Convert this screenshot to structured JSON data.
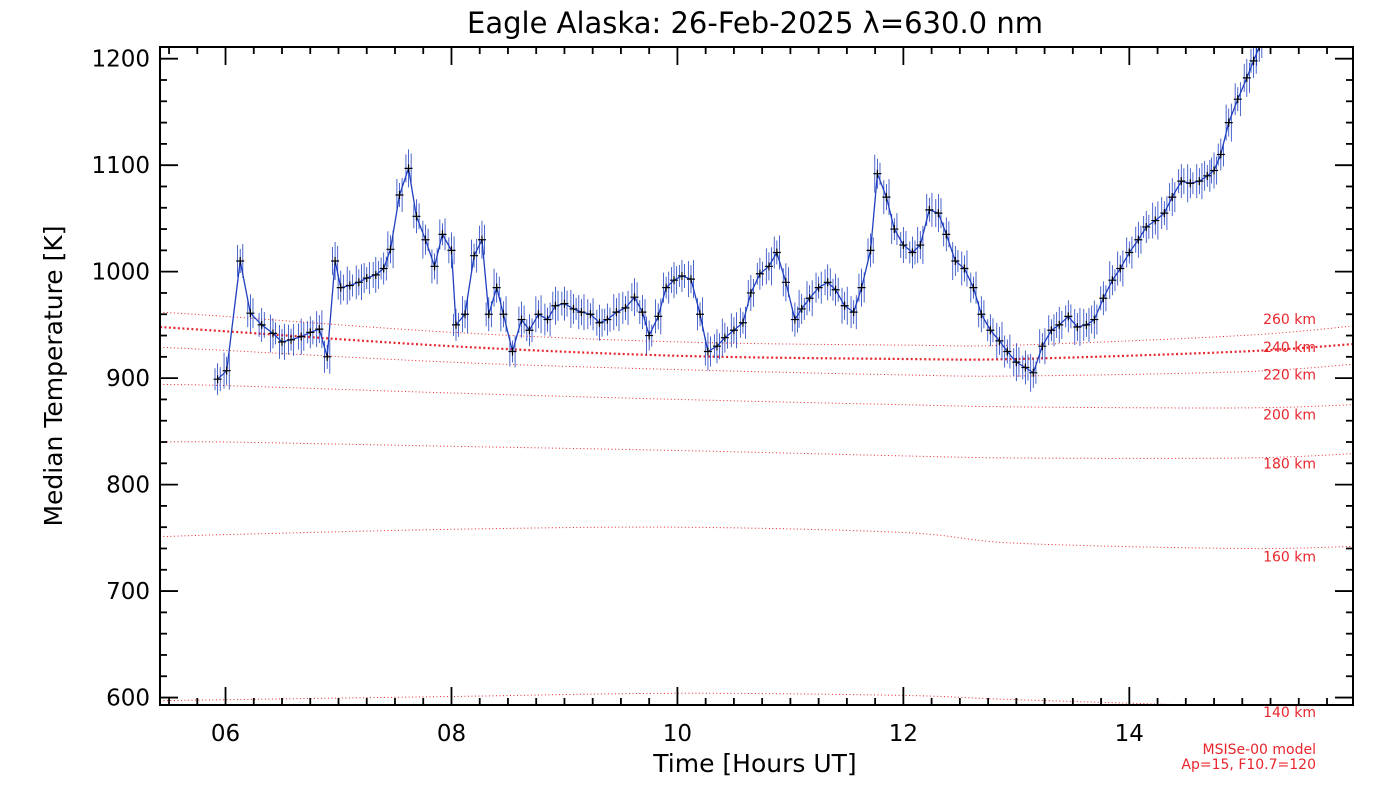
{
  "chart_data": {
    "type": "line",
    "title": "Eagle Alaska: 26-Feb-2025 λ=630.0 nm",
    "xlabel": "Time [Hours UT]",
    "ylabel": "Median Temperature [K]",
    "xlim": [
      5.42,
      15.98
    ],
    "ylim": [
      593,
      1211
    ],
    "x_ticks": [
      6,
      8,
      10,
      12,
      14
    ],
    "x_tick_labels": [
      "06",
      "08",
      "10",
      "12",
      "14"
    ],
    "y_ticks": [
      600,
      700,
      800,
      900,
      1000,
      1100,
      1200
    ],
    "y_tick_labels": [
      "600",
      "700",
      "800",
      "900",
      "1000",
      "1100",
      "1200"
    ],
    "grid": false,
    "colors": {
      "measurement_line": "#1f3fbf",
      "errorbar": "#1f3fbf",
      "marker": "#000000",
      "model": "#e8262d",
      "annotation": "#e8262d"
    },
    "annotations": [
      "MSISe-00 model",
      "Ap=15, F10.7=120"
    ],
    "series": [
      {
        "kind": "measurement",
        "points": [
          [
            5.93,
            899
          ],
          [
            6.01,
            907
          ],
          [
            6.13,
            1010
          ],
          [
            6.22,
            961
          ],
          [
            6.32,
            950
          ],
          [
            6.42,
            942
          ],
          [
            6.5,
            934
          ],
          [
            6.58,
            936
          ],
          [
            6.67,
            939
          ],
          [
            6.75,
            943
          ],
          [
            6.83,
            946
          ],
          [
            6.9,
            920
          ],
          [
            6.97,
            1010
          ],
          [
            7.02,
            985
          ],
          [
            7.1,
            987
          ],
          [
            7.18,
            990
          ],
          [
            7.25,
            994
          ],
          [
            7.33,
            997
          ],
          [
            7.4,
            1003
          ],
          [
            7.46,
            1021
          ],
          [
            7.54,
            1072
          ],
          [
            7.62,
            1097
          ],
          [
            7.69,
            1052
          ],
          [
            7.77,
            1030
          ],
          [
            7.85,
            1005
          ],
          [
            7.92,
            1035
          ],
          [
            8.0,
            1020
          ],
          [
            8.04,
            950
          ],
          [
            8.12,
            960
          ],
          [
            8.2,
            1015
          ],
          [
            8.27,
            1030
          ],
          [
            8.33,
            960
          ],
          [
            8.4,
            985
          ],
          [
            8.46,
            960
          ],
          [
            8.54,
            925
          ],
          [
            8.62,
            955
          ],
          [
            8.69,
            945
          ],
          [
            8.77,
            960
          ],
          [
            8.85,
            955
          ],
          [
            8.92,
            968
          ],
          [
            9.0,
            970
          ],
          [
            9.08,
            965
          ],
          [
            9.15,
            962
          ],
          [
            9.23,
            960
          ],
          [
            9.31,
            952
          ],
          [
            9.38,
            955
          ],
          [
            9.46,
            962
          ],
          [
            9.54,
            966
          ],
          [
            9.62,
            976
          ],
          [
            9.69,
            962
          ],
          [
            9.75,
            940
          ],
          [
            9.83,
            958
          ],
          [
            9.9,
            985
          ],
          [
            9.97,
            992
          ],
          [
            10.04,
            996
          ],
          [
            10.12,
            993
          ],
          [
            10.2,
            960
          ],
          [
            10.27,
            925
          ],
          [
            10.35,
            930
          ],
          [
            10.42,
            938
          ],
          [
            10.5,
            945
          ],
          [
            10.58,
            952
          ],
          [
            10.65,
            980
          ],
          [
            10.73,
            998
          ],
          [
            10.81,
            1005
          ],
          [
            10.88,
            1018
          ],
          [
            10.96,
            990
          ],
          [
            11.04,
            955
          ],
          [
            11.1,
            965
          ],
          [
            11.17,
            975
          ],
          [
            11.25,
            985
          ],
          [
            11.33,
            990
          ],
          [
            11.4,
            983
          ],
          [
            11.48,
            968
          ],
          [
            11.56,
            962
          ],
          [
            11.63,
            985
          ],
          [
            11.71,
            1020
          ],
          [
            11.77,
            1092
          ],
          [
            11.85,
            1070
          ],
          [
            11.92,
            1040
          ],
          [
            12.0,
            1025
          ],
          [
            12.08,
            1018
          ],
          [
            12.15,
            1025
          ],
          [
            12.23,
            1058
          ],
          [
            12.31,
            1055
          ],
          [
            12.38,
            1035
          ],
          [
            12.46,
            1010
          ],
          [
            12.54,
            1003
          ],
          [
            12.62,
            985
          ],
          [
            12.69,
            960
          ],
          [
            12.77,
            945
          ],
          [
            12.85,
            935
          ],
          [
            12.92,
            925
          ],
          [
            13.0,
            915
          ],
          [
            13.08,
            910
          ],
          [
            13.15,
            905
          ],
          [
            13.23,
            930
          ],
          [
            13.31,
            945
          ],
          [
            13.38,
            950
          ],
          [
            13.46,
            958
          ],
          [
            13.54,
            948
          ],
          [
            13.62,
            950
          ],
          [
            13.69,
            955
          ],
          [
            13.77,
            975
          ],
          [
            13.85,
            992
          ],
          [
            13.92,
            1003
          ],
          [
            14.0,
            1018
          ],
          [
            14.08,
            1030
          ],
          [
            14.15,
            1042
          ],
          [
            14.23,
            1048
          ],
          [
            14.31,
            1055
          ],
          [
            14.38,
            1070
          ],
          [
            14.46,
            1085
          ],
          [
            14.54,
            1083
          ],
          [
            14.62,
            1085
          ],
          [
            14.69,
            1090
          ],
          [
            14.75,
            1095
          ],
          [
            14.81,
            1110
          ],
          [
            14.88,
            1140
          ],
          [
            14.96,
            1162
          ],
          [
            15.04,
            1182
          ],
          [
            15.1,
            1198
          ],
          [
            15.15,
            1211
          ]
        ]
      },
      {
        "kind": "model",
        "name": "140 km",
        "x": [
          5.42,
          6.0,
          8.0,
          10.0,
          12.0,
          13.0,
          15.0,
          15.98
        ],
        "y": [
          597,
          598,
          601,
          604,
          602,
          598,
          592,
          593
        ]
      },
      {
        "kind": "model",
        "name": "160 km",
        "x": [
          5.42,
          6.0,
          8.0,
          10.0,
          12.0,
          13.0,
          15.0,
          15.98
        ],
        "y": [
          751,
          753,
          758,
          760,
          755,
          745,
          740,
          742
        ]
      },
      {
        "kind": "model",
        "name": "180 km",
        "x": [
          5.42,
          6.0,
          8.0,
          10.0,
          12.0,
          13.0,
          15.0,
          15.98
        ],
        "y": [
          840,
          840,
          836,
          832,
          827,
          825,
          825,
          829
        ]
      },
      {
        "kind": "model",
        "name": "200 km",
        "x": [
          5.42,
          6.0,
          8.0,
          10.0,
          12.0,
          13.0,
          15.0,
          15.98
        ],
        "y": [
          894,
          893,
          886,
          880,
          875,
          873,
          872,
          875
        ]
      },
      {
        "kind": "model",
        "name": "220 km",
        "x": [
          5.42,
          6.0,
          8.0,
          10.0,
          12.0,
          13.0,
          15.0,
          15.98
        ],
        "y": [
          929,
          926,
          915,
          908,
          903,
          902,
          906,
          913
        ]
      },
      {
        "kind": "model",
        "name": "240 km",
        "x": [
          5.42,
          6.0,
          8.0,
          10.0,
          12.0,
          13.0,
          15.0,
          15.98
        ],
        "y": [
          948,
          944,
          930,
          921,
          918,
          918,
          925,
          932
        ],
        "emphasis": true
      },
      {
        "kind": "model",
        "name": "260 km",
        "x": [
          5.42,
          6.0,
          8.0,
          10.0,
          12.0,
          13.0,
          15.0,
          15.98
        ],
        "y": [
          962,
          958,
          943,
          934,
          931,
          931,
          940,
          949
        ]
      }
    ]
  }
}
